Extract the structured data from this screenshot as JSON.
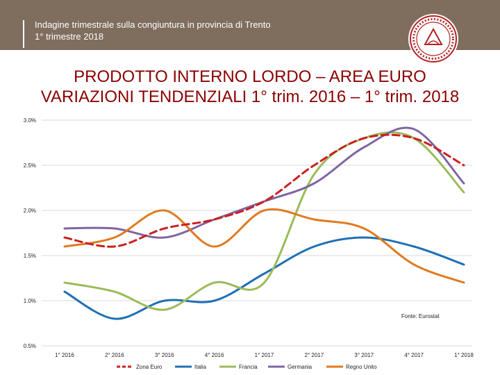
{
  "header": {
    "line1": "Indagine trimestrale sulla congiuntura in provincia di Trento",
    "line2": "1° trimestre 2018"
  },
  "title": {
    "line1": "PRODOTTO INTERNO LORDO – AREA EURO",
    "line2": "VARIAZIONI TENDENZIALI 1° trim. 2016 – 1° trim. 2018"
  },
  "source": "Fonte: Eurostat",
  "chart_data": {
    "type": "line",
    "title": "PRODOTTO INTERNO LORDO – AREA EURO VARIAZIONI TENDENZIALI 1° trim. 2016 – 1° trim. 2018",
    "xlabel": "",
    "ylabel": "",
    "ylim": [
      0.5,
      3.0
    ],
    "yticks": [
      "3.0%",
      "2.5%",
      "2.0%",
      "1.5%",
      "1.0%",
      "0.5%"
    ],
    "ytick_values": [
      3.0,
      2.5,
      2.0,
      1.5,
      1.0,
      0.5
    ],
    "categories": [
      "1° 2016",
      "2° 2016",
      "3° 2016",
      "4° 2016",
      "1° 2017",
      "2° 2017",
      "3° 2017",
      "4° 2017",
      "1° 2018"
    ],
    "legend_position": "bottom",
    "grid": true,
    "series": [
      {
        "name": "Zona Euro",
        "color": "#cc1f1f",
        "dashed": true,
        "values": [
          1.7,
          1.6,
          1.8,
          1.9,
          2.1,
          2.5,
          2.8,
          2.8,
          2.5
        ]
      },
      {
        "name": "Italia",
        "color": "#1f6fb5",
        "dashed": false,
        "values": [
          1.1,
          0.8,
          1.0,
          1.0,
          1.3,
          1.6,
          1.7,
          1.6,
          1.4
        ]
      },
      {
        "name": "Francia",
        "color": "#9bbb59",
        "dashed": false,
        "values": [
          1.2,
          1.1,
          0.9,
          1.2,
          1.2,
          2.4,
          2.8,
          2.8,
          2.2
        ]
      },
      {
        "name": "Germania",
        "color": "#8064a2",
        "dashed": false,
        "values": [
          1.8,
          1.8,
          1.7,
          1.9,
          2.1,
          2.3,
          2.7,
          2.9,
          2.3
        ]
      },
      {
        "name": "Regno Unito",
        "color": "#e07a1f",
        "dashed": false,
        "values": [
          1.6,
          1.7,
          2.0,
          1.6,
          2.0,
          1.9,
          1.8,
          1.4,
          1.2
        ]
      }
    ]
  }
}
